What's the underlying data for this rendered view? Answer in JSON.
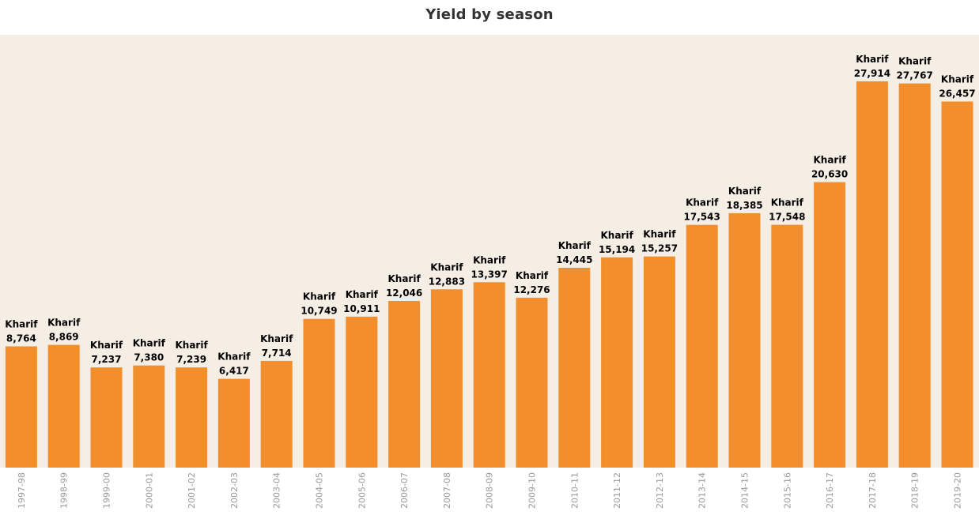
{
  "chart_data": {
    "type": "bar",
    "title": "Yield by season",
    "categories": [
      "1997-98",
      "1998-99",
      "1999-00",
      "2000-01",
      "2001-02",
      "2002-03",
      "2003-04",
      "2004-05",
      "2005-06",
      "2006-07",
      "2007-08",
      "2008-09",
      "2009-10",
      "2010-11",
      "2011-12",
      "2012-13",
      "2013-14",
      "2014-15",
      "2015-16",
      "2016-17",
      "2017-18",
      "2018-19",
      "2019-20"
    ],
    "series": [
      {
        "name": "Kharif",
        "values": [
          8764,
          8869,
          7237,
          7380,
          7239,
          6417,
          7714,
          10749,
          10911,
          12046,
          12883,
          13397,
          12276,
          14445,
          15194,
          15257,
          17543,
          18385,
          17548,
          20630,
          27914,
          27767,
          26457
        ],
        "labels": [
          "8,764",
          "8,869",
          "7,237",
          "7,380",
          "7,239",
          "6,417",
          "7,714",
          "10,749",
          "10,911",
          "12,046",
          "12,883",
          "13,397",
          "12,276",
          "14,445",
          "15,194",
          "15,257",
          "17,543",
          "18,385",
          "17,548",
          "20,630",
          "27,914",
          "27,767",
          "26,457"
        ]
      }
    ],
    "xlabel": "",
    "ylabel": "",
    "ylim": [
      0,
      31000
    ],
    "grid": false,
    "legend": "none"
  },
  "colors": {
    "bar": "#f28e2b",
    "plot_background": "#f5eee4",
    "tick_label": "#9a9a9a",
    "title": "#333333"
  }
}
